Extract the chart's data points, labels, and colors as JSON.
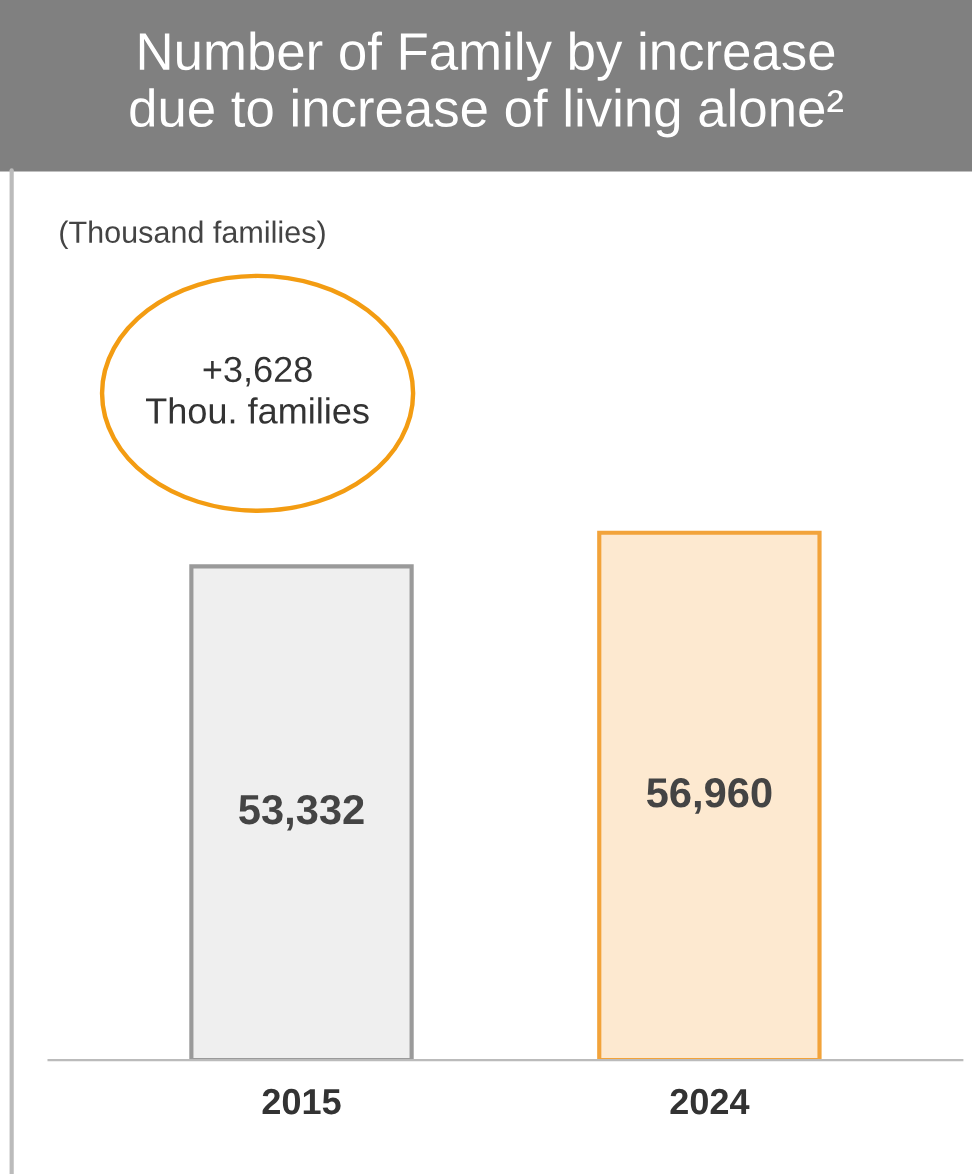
{
  "chart_data": {
    "type": "bar",
    "title": "Number of Family by increase\ndue to increase of living alone²",
    "categories": [
      "2015",
      "2024"
    ],
    "values": [
      53332,
      56960
    ],
    "colors": [
      "#efefef",
      "#fde9d0"
    ],
    "value_labels": [
      "53,332",
      "56,960"
    ],
    "tick_labels": "x",
    "annotations": [
      "(Thousand families)",
      "+3,628\nThou. families"
    ],
    "grid": false
  }
}
